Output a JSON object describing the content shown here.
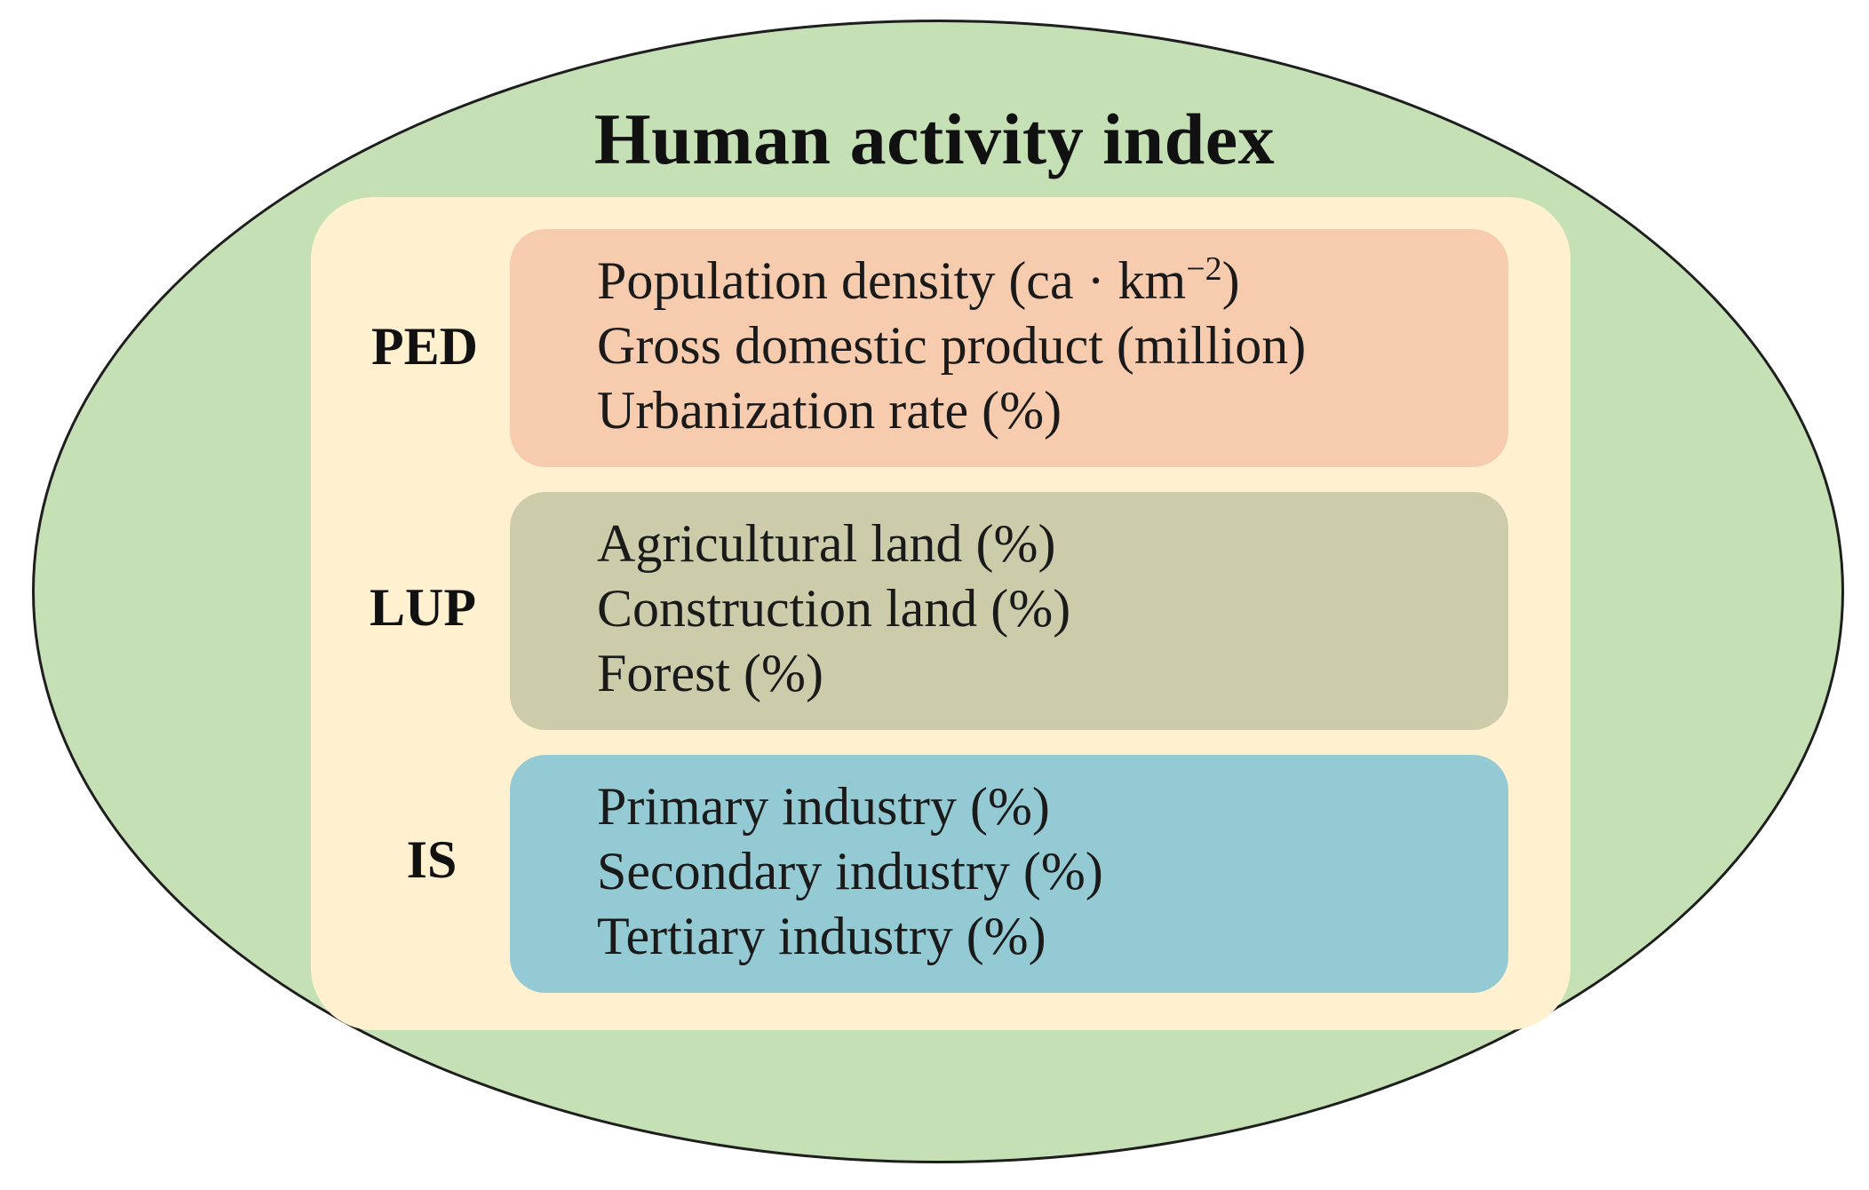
{
  "diagram": {
    "title": "Human activity index",
    "colors": {
      "outer_ellipse": "#c5e0b5",
      "inner_panel": "#fff1d0",
      "ped_box": "#f7cbad",
      "lup_box": "#cccbaa",
      "is_box": "#94cad4"
    },
    "groups": [
      {
        "label": "PED",
        "items": [
          "Population density (ca · km",
          "Gross domestic product (million)",
          "Urbanization rate (%)"
        ],
        "first_item_superscript": "−2",
        "first_item_suffix": ")"
      },
      {
        "label": "LUP",
        "items": [
          "Agricultural land (%)",
          "Construction land (%)",
          "Forest (%)"
        ]
      },
      {
        "label": "IS",
        "items": [
          "Primary industry (%)",
          "Secondary industry (%)",
          "Tertiary industry (%)"
        ]
      }
    ]
  }
}
